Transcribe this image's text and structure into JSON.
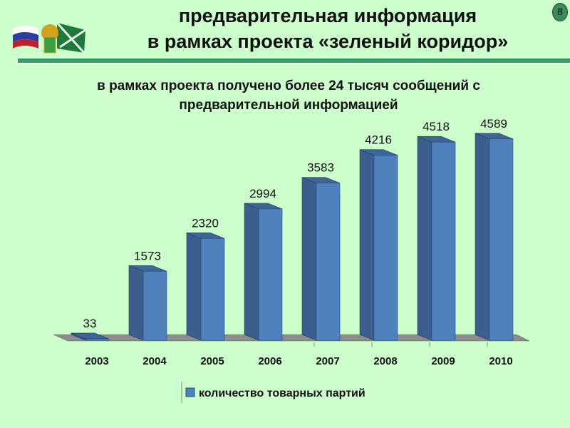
{
  "header": {
    "title_line1": "предварительная информация",
    "title_line2": "в рамках проекта «зеленый коридор»",
    "page_number": "8"
  },
  "subtitle_line1": "в рамках проекта получено более 24 тысяч сообщений с",
  "subtitle_line2": "предварительной информацией",
  "colors": {
    "background": "#ccffcc",
    "bar_front": "#4f81bd",
    "bar_side": "#3a5f8e",
    "rule": "#3a9a6a"
  },
  "chart_data": {
    "type": "bar",
    "style": "3d-column",
    "categories": [
      "2003",
      "2004",
      "2005",
      "2006",
      "2007",
      "2008",
      "2009",
      "2010"
    ],
    "series": [
      {
        "name": "количество товарных партий",
        "values": [
          33,
          1573,
          2320,
          2994,
          3583,
          4216,
          4518,
          4589
        ]
      }
    ],
    "data_labels": [
      "33",
      "1573",
      "2320",
      "2994",
      "3583",
      "4216",
      "4518",
      "4589"
    ],
    "legend": "bottom",
    "grid": false,
    "y_axis_visible": false
  }
}
